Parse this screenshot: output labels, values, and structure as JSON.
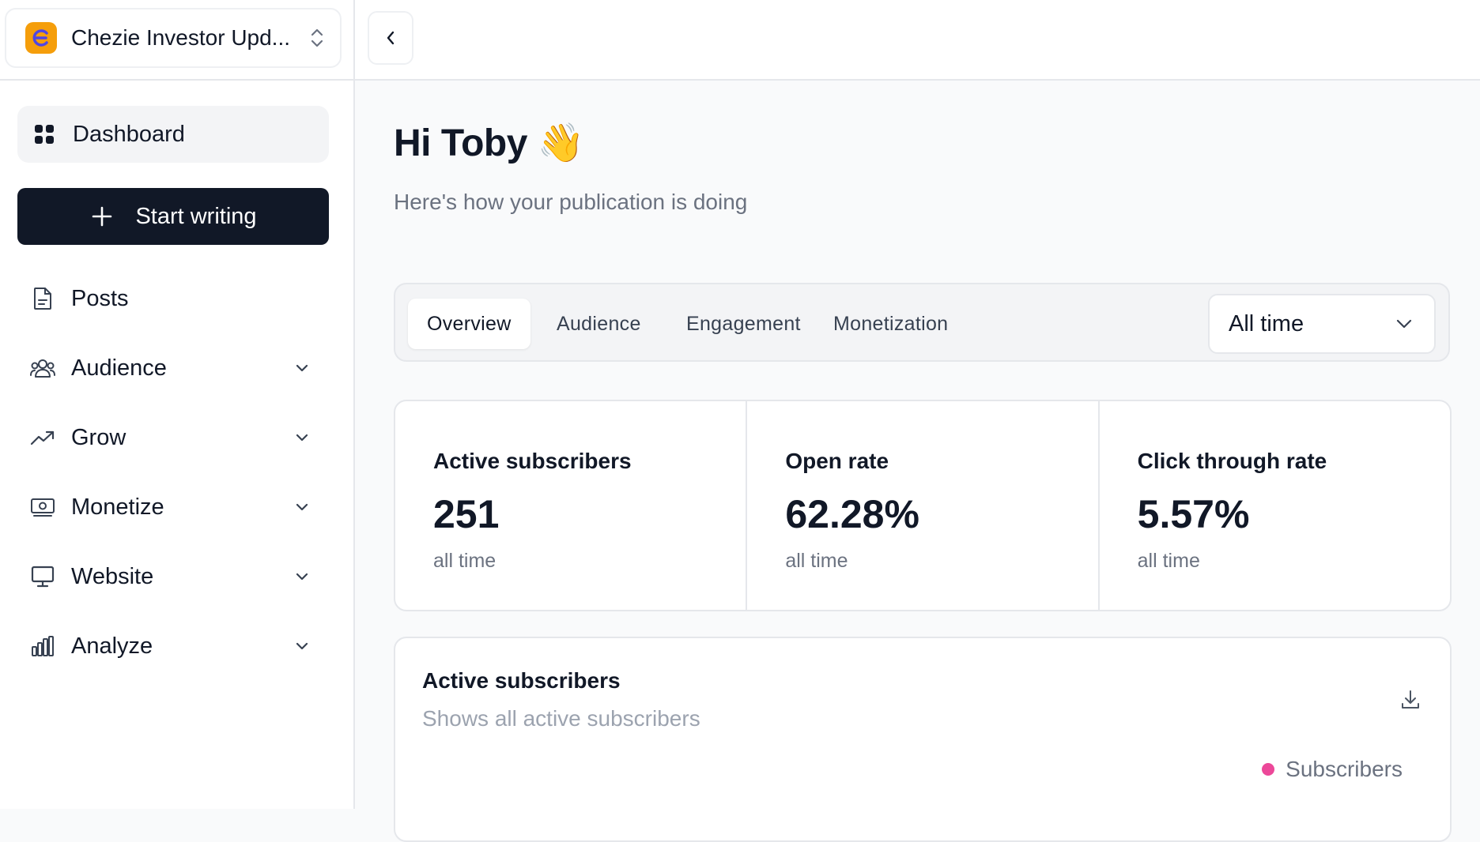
{
  "sidebar": {
    "publication_name": "Chezie Investor Upd...",
    "dashboard_label": "Dashboard",
    "start_writing_label": "Start writing",
    "items": [
      {
        "label": "Posts",
        "icon": "document-icon"
      },
      {
        "label": "Audience",
        "icon": "users-icon"
      },
      {
        "label": "Grow",
        "icon": "trending-up-icon"
      },
      {
        "label": "Monetize",
        "icon": "money-icon"
      },
      {
        "label": "Website",
        "icon": "monitor-icon"
      },
      {
        "label": "Analyze",
        "icon": "bar-chart-icon"
      }
    ]
  },
  "main": {
    "greeting": "Hi Toby",
    "greeting_emoji": "👋",
    "subtitle": "Here's how your publication is doing",
    "tabs": [
      "Overview",
      "Audience",
      "Engagement",
      "Monetization"
    ],
    "active_tab": "Overview",
    "range": "All time",
    "stats": [
      {
        "label": "Active subscribers",
        "value": "251",
        "period": "all time"
      },
      {
        "label": "Open rate",
        "value": "62.28%",
        "period": "all time"
      },
      {
        "label": "Click through rate",
        "value": "5.57%",
        "period": "all time"
      }
    ],
    "chart": {
      "title": "Active subscribers",
      "subtitle": "Shows all active subscribers",
      "legend": "Subscribers",
      "legend_color": "#ec4899"
    }
  },
  "colors": {
    "accent_dark": "#111827",
    "brand_logo": "#f59e0b"
  }
}
